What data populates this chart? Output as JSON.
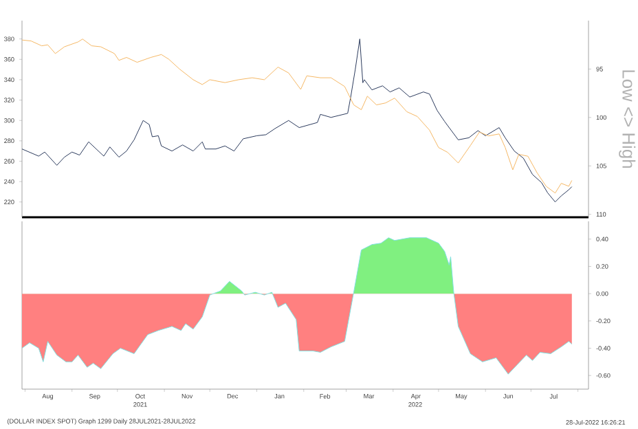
{
  "chart_data": [
    {
      "type": "line",
      "y2label": "Low <> High",
      "xlim": [
        "2021-07-30",
        "2022-08-08"
      ],
      "ylim": [
        205,
        398
      ],
      "yticks": [
        220,
        240,
        260,
        280,
        300,
        320,
        340,
        360,
        380
      ],
      "y2lim": [
        110.3,
        90
      ],
      "y2ticks": [
        95,
        100,
        105,
        110
      ],
      "tick_labels": "y",
      "series": [
        {
          "type": "line",
          "color": "#2b3a5c",
          "x": [
            "2021-07-30",
            "2021-08-10",
            "2021-08-14",
            "2021-08-22",
            "2021-08-27",
            "2021-09-01",
            "2021-09-06",
            "2021-09-12",
            "2021-09-17",
            "2021-09-22",
            "2021-09-26",
            "2021-10-02",
            "2021-10-07",
            "2021-10-12",
            "2021-10-18",
            "2021-10-22",
            "2021-10-24",
            "2021-10-28",
            "2021-10-30",
            "2021-11-06",
            "2021-11-13",
            "2021-11-20",
            "2021-11-26",
            "2021-11-28",
            "2021-12-05",
            "2021-12-11",
            "2021-12-17",
            "2021-12-23",
            "2022-01-01",
            "2022-01-07",
            "2022-01-13",
            "2022-01-22",
            "2022-01-29",
            "2022-02-10",
            "2022-02-12",
            "2022-02-19",
            "2022-03-02",
            "2022-03-04",
            "2022-03-07",
            "2022-03-10",
            "2022-03-12",
            "2022-03-13",
            "2022-03-18",
            "2022-03-25",
            "2022-03-30",
            "2022-04-05",
            "2022-04-12",
            "2022-04-21",
            "2022-04-25",
            "2022-04-30",
            "2022-05-05",
            "2022-05-14",
            "2022-05-21",
            "2022-05-27",
            "2022-06-01",
            "2022-06-10",
            "2022-06-14",
            "2022-06-20",
            "2022-06-26",
            "2022-07-02",
            "2022-07-08",
            "2022-07-12",
            "2022-07-17",
            "2022-07-21",
            "2022-07-26",
            "2022-07-28"
          ],
          "values": [
            272,
            265,
            269,
            256,
            264,
            269,
            266,
            279,
            272,
            265,
            274,
            264,
            270,
            281,
            300,
            296,
            284,
            285,
            275,
            270,
            276,
            270,
            279,
            272,
            272,
            275,
            270,
            282,
            285,
            286,
            292,
            300,
            293,
            298,
            306,
            303,
            307,
            323,
            350,
            380,
            337,
            340,
            330,
            334,
            328,
            332,
            323,
            328,
            326,
            310,
            299,
            281,
            283,
            290,
            285,
            293,
            283,
            270,
            263,
            247,
            239,
            229,
            220,
            226,
            232,
            235
          ]
        },
        {
          "type": "line",
          "axis": "y2",
          "color": "#f5b865",
          "x": [
            "2021-07-30",
            "2021-08-05",
            "2021-08-12",
            "2021-08-16",
            "2021-08-21",
            "2021-08-27",
            "2021-09-05",
            "2021-09-08",
            "2021-09-14",
            "2021-09-20",
            "2021-09-29",
            "2021-10-02",
            "2021-10-07",
            "2021-10-14",
            "2021-10-23",
            "2021-10-30",
            "2021-11-04",
            "2021-11-11",
            "2021-11-20",
            "2021-11-26",
            "2021-12-01",
            "2021-12-11",
            "2021-12-20",
            "2021-12-29",
            "2022-01-06",
            "2022-01-15",
            "2022-01-22",
            "2022-01-30",
            "2022-02-03",
            "2022-02-12",
            "2022-02-19",
            "2022-02-28",
            "2022-03-06",
            "2022-03-11",
            "2022-03-15",
            "2022-03-21",
            "2022-03-27",
            "2022-04-02",
            "2022-04-10",
            "2022-04-17",
            "2022-04-25",
            "2022-05-01",
            "2022-05-07",
            "2022-05-14",
            "2022-05-22",
            "2022-05-28",
            "2022-06-03",
            "2022-06-10",
            "2022-06-14",
            "2022-06-19",
            "2022-06-23",
            "2022-06-29",
            "2022-07-05",
            "2022-07-11",
            "2022-07-17",
            "2022-07-21",
            "2022-07-26",
            "2022-07-28"
          ],
          "values": [
            92.0,
            92.1,
            92.6,
            92.5,
            93.4,
            92.7,
            92.2,
            91.9,
            92.6,
            92.7,
            93.4,
            94.1,
            93.8,
            94.3,
            93.8,
            93.5,
            94.0,
            95.0,
            96.1,
            96.6,
            96.1,
            96.4,
            96.1,
            95.9,
            96.1,
            94.8,
            95.4,
            97.1,
            95.7,
            95.9,
            95.9,
            96.8,
            98.7,
            99.2,
            97.8,
            98.7,
            98.5,
            98.0,
            99.4,
            99.9,
            101.3,
            103.1,
            103.6,
            104.7,
            102.9,
            101.5,
            101.9,
            101.7,
            103.1,
            105.4,
            103.8,
            104.0,
            105.7,
            107.1,
            107.8,
            106.8,
            107.1,
            106.5
          ]
        }
      ]
    },
    {
      "type": "area",
      "xlim": [
        "2021-07-30",
        "2022-08-08"
      ],
      "ylim": [
        -0.7,
        0.53
      ],
      "yticks": [
        {
          "value": 0.4,
          "label": "0.40"
        },
        {
          "value": 0.2,
          "label": "0.20"
        },
        {
          "value": 0.0,
          "label": "0.00"
        },
        {
          "value": -0.2,
          "label": "-0.20"
        },
        {
          "value": -0.4,
          "label": "-0.40"
        },
        {
          "value": -0.6,
          "label": "-0.60"
        }
      ],
      "xticks": [
        {
          "value": "2021-08-01",
          "label": null
        },
        {
          "value": "2021-08-16",
          "label": "Aug"
        },
        {
          "value": "2021-09-01",
          "label": null
        },
        {
          "value": "2021-09-16",
          "label": "Sep"
        },
        {
          "value": "2021-10-01",
          "label": null
        },
        {
          "value": "2021-10-16",
          "label": "Oct"
        },
        {
          "value": "2021-11-01",
          "label": null
        },
        {
          "value": "2021-11-16",
          "label": "Nov"
        },
        {
          "value": "2021-12-01",
          "label": null
        },
        {
          "value": "2021-12-16",
          "label": "Dec"
        },
        {
          "value": "2022-01-01",
          "label": null
        },
        {
          "value": "2022-01-16",
          "label": "Jan"
        },
        {
          "value": "2022-02-01",
          "label": null
        },
        {
          "value": "2022-02-15",
          "label": "Feb"
        },
        {
          "value": "2022-03-01",
          "label": null
        },
        {
          "value": "2022-03-16",
          "label": "Mar"
        },
        {
          "value": "2022-04-01",
          "label": null
        },
        {
          "value": "2022-04-16",
          "label": "Apr"
        },
        {
          "value": "2022-05-01",
          "label": null
        },
        {
          "value": "2022-05-16",
          "label": "May"
        },
        {
          "value": "2022-06-01",
          "label": null
        },
        {
          "value": "2022-06-16",
          "label": "Jun"
        },
        {
          "value": "2022-07-01",
          "label": null
        },
        {
          "value": "2022-07-16",
          "label": "Jul"
        },
        {
          "value": "2022-08-01",
          "label": null
        }
      ],
      "annotations": [
        "2021",
        "2022",
        "(DOLLAR INDEX SPOT) Graph 1299  Daily 28JUL2021-28JUL2022",
        "28-Jul-2022 16:26:21"
      ],
      "series": [
        {
          "type": "area",
          "color": "#7fe0e0",
          "x": [
            "2021-07-30",
            "2021-08-04",
            "2021-08-10",
            "2021-08-13",
            "2021-08-16",
            "2021-08-22",
            "2021-08-28",
            "2021-09-01",
            "2021-09-05",
            "2021-09-11",
            "2021-09-15",
            "2021-09-20",
            "2021-09-28",
            "2021-10-03",
            "2021-10-12",
            "2021-10-21",
            "2021-10-28",
            "2021-11-06",
            "2021-11-12",
            "2021-11-15",
            "2021-11-20",
            "2021-11-26",
            "2021-12-01",
            "2021-12-08",
            "2021-12-14",
            "2021-12-22",
            "2021-12-24",
            "2021-12-31",
            "2022-01-06",
            "2022-01-11",
            "2022-01-15",
            "2022-01-20",
            "2022-01-27",
            "2022-01-29",
            "2022-02-07",
            "2022-02-12",
            "2022-02-19",
            "2022-02-28",
            "2022-03-06",
            "2022-03-11",
            "2022-03-18",
            "2022-03-24",
            "2022-03-29",
            "2022-04-02",
            "2022-04-12",
            "2022-04-23",
            "2022-05-01",
            "2022-05-05",
            "2022-05-08",
            "2022-05-09",
            "2022-05-11",
            "2022-05-14",
            "2022-05-22",
            "2022-05-30",
            "2022-06-08",
            "2022-06-16",
            "2022-06-22",
            "2022-06-28",
            "2022-07-02",
            "2022-07-07",
            "2022-07-14",
            "2022-07-21",
            "2022-07-26",
            "2022-07-28"
          ],
          "values": [
            -0.4,
            -0.36,
            -0.4,
            -0.5,
            -0.35,
            -0.45,
            -0.5,
            -0.5,
            -0.45,
            -0.54,
            -0.51,
            -0.55,
            -0.44,
            -0.4,
            -0.44,
            -0.3,
            -0.27,
            -0.24,
            -0.27,
            -0.22,
            -0.26,
            -0.17,
            -0.01,
            0.02,
            0.09,
            0.02,
            -0.01,
            0.01,
            -0.01,
            0.01,
            -0.1,
            -0.07,
            -0.19,
            -0.42,
            -0.42,
            -0.43,
            -0.39,
            -0.35,
            0.01,
            0.32,
            0.36,
            0.37,
            0.41,
            0.39,
            0.41,
            0.41,
            0.37,
            0.31,
            0.21,
            0.27,
            0.01,
            -0.24,
            -0.44,
            -0.5,
            -0.47,
            -0.59,
            -0.52,
            -0.45,
            -0.49,
            -0.43,
            -0.44,
            -0.39,
            -0.35,
            -0.37
          ],
          "colors": [
            "#ff8080",
            "#ff8080",
            "#ff8080",
            "#ff8080",
            "#ff8080",
            "#ff8080",
            "#ff8080",
            "#ff8080",
            "#ff8080",
            "#ff8080",
            "#ff8080",
            "#ff8080",
            "#ff8080",
            "#ff8080",
            "#ff8080",
            "#ff8080",
            "#ff8080",
            "#ff8080",
            "#ff8080",
            "#ff8080",
            "#ff8080",
            "#ff8080",
            "#ff8080",
            "#80f080",
            "#80f080",
            "#80f080",
            "#ff8080",
            "#80f080",
            "#ff8080",
            "#80f080",
            "#ff8080",
            "#ff8080",
            "#ff8080",
            "#ff8080",
            "#ff8080",
            "#ff8080",
            "#ff8080",
            "#ff8080",
            "#80f080",
            "#80f080",
            "#80f080",
            "#80f080",
            "#80f080",
            "#80f080",
            "#80f080",
            "#80f080",
            "#80f080",
            "#80f080",
            "#80f080",
            "#80f080",
            "#80f080",
            "#ff8080",
            "#ff8080",
            "#ff8080",
            "#ff8080",
            "#ff8080",
            "#ff8080",
            "#ff8080",
            "#ff8080",
            "#ff8080",
            "#ff8080",
            "#ff8080",
            "#ff8080",
            "#ff8080"
          ]
        }
      ]
    }
  ]
}
